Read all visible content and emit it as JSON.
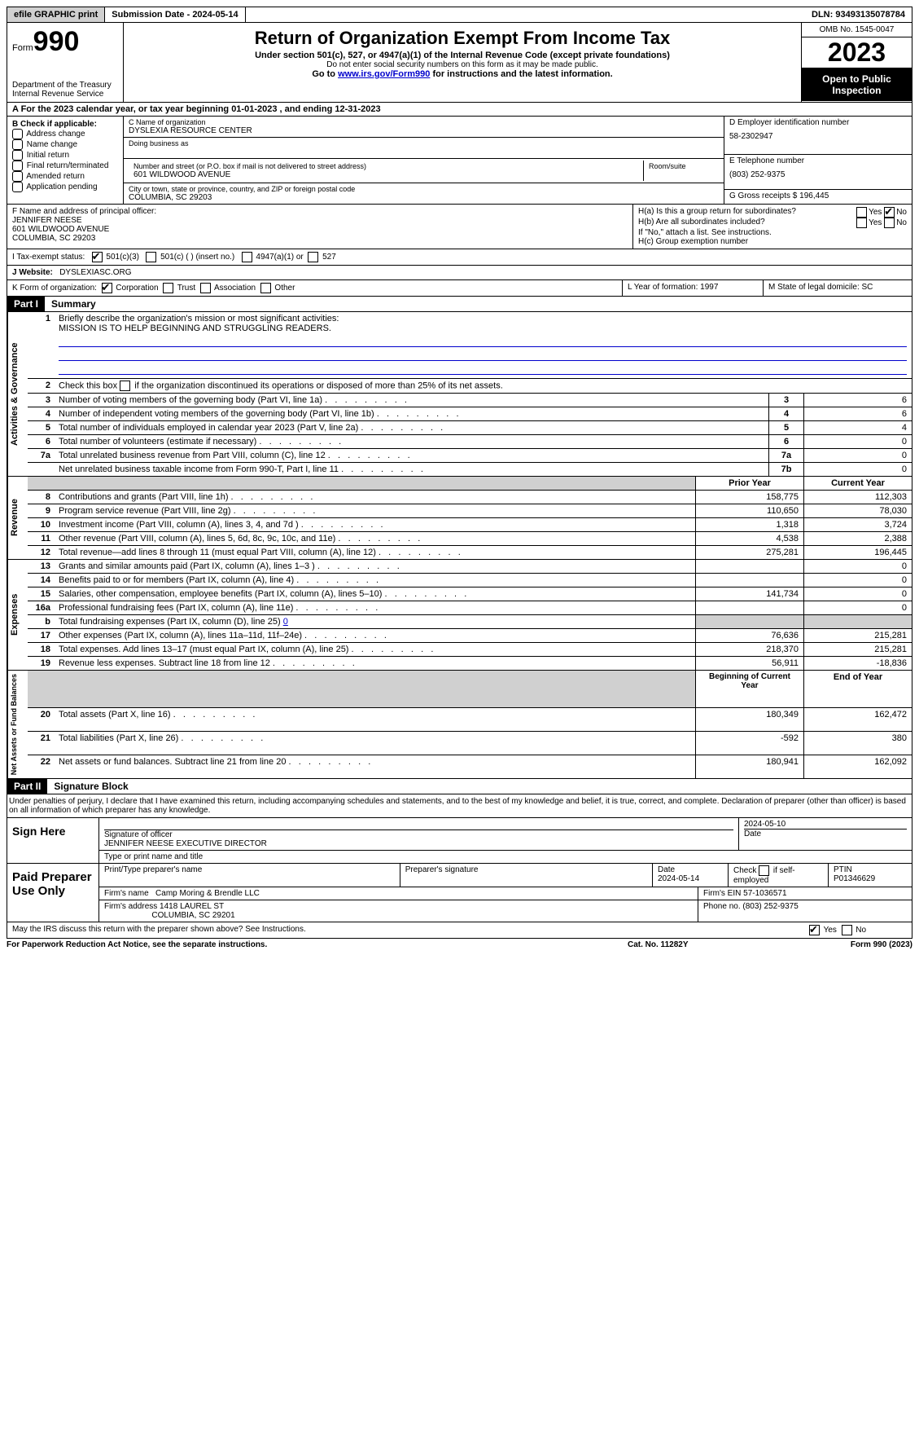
{
  "topbar": {
    "efile_btn": "efile GRAPHIC print",
    "submission": "Submission Date - 2024-05-14",
    "dln": "DLN: 93493135078784"
  },
  "header": {
    "form_word": "Form",
    "form_num": "990",
    "dept": "Department of the Treasury Internal Revenue Service",
    "title": "Return of Organization Exempt From Income Tax",
    "sub": "Under section 501(c), 527, or 4947(a)(1) of the Internal Revenue Code (except private foundations)",
    "ssn_note": "Do not enter social security numbers on this form as it may be made public.",
    "goto_pre": "Go to ",
    "goto_link": "www.irs.gov/Form990",
    "goto_post": " for instructions and the latest information.",
    "omb": "OMB No. 1545-0047",
    "year": "2023",
    "open": "Open to Public Inspection"
  },
  "a_line": "A  For the 2023 calendar year, or tax year beginning 01-01-2023    , and ending 12-31-2023",
  "b": {
    "label": "B Check if applicable:",
    "opts": [
      "Address change",
      "Name change",
      "Initial return",
      "Final return/terminated",
      "Amended return",
      "Application pending"
    ]
  },
  "c": {
    "name_lab": "C Name of organization",
    "name": "DYSLEXIA RESOURCE CENTER",
    "dba_lab": "Doing business as",
    "street_lab": "Number and street (or P.O. box if mail is not delivered to street address)",
    "room_lab": "Room/suite",
    "street": "601 WILDWOOD AVENUE",
    "city_lab": "City or town, state or province, country, and ZIP or foreign postal code",
    "city": "COLUMBIA, SC  29203"
  },
  "d": {
    "lab": "D Employer identification number",
    "val": "58-2302947"
  },
  "e": {
    "lab": "E Telephone number",
    "val": "(803) 252-9375"
  },
  "g": {
    "lab": "G Gross receipts $",
    "val": "196,445"
  },
  "f": {
    "lab": "F  Name and address of principal officer:",
    "name": "JENNIFER NEESE",
    "addr1": "601 WILDWOOD AVENUE",
    "addr2": "COLUMBIA, SC  29203"
  },
  "h": {
    "a_lab": "H(a)  Is this a group return for subordinates?",
    "b_lab": "H(b)  Are all subordinates included?",
    "b_note": "If \"No,\" attach a list. See instructions.",
    "c_lab": "H(c)  Group exemption number",
    "yes": "Yes",
    "no": "No"
  },
  "i": {
    "lab": "I   Tax-exempt status:",
    "o1": "501(c)(3)",
    "o2": "501(c) (  ) (insert no.)",
    "o3": "4947(a)(1) or",
    "o4": "527"
  },
  "j": {
    "lab": "J   Website:",
    "val": "DYSLEXIASC.ORG"
  },
  "k": {
    "lab": "K Form of organization:",
    "o1": "Corporation",
    "o2": "Trust",
    "o3": "Association",
    "o4": "Other"
  },
  "l": {
    "lab": "L Year of formation:",
    "val": "1997"
  },
  "m": {
    "lab": "M State of legal domicile:",
    "val": "SC"
  },
  "part1": {
    "hdr": "Part I",
    "title": "Summary"
  },
  "s1": {
    "vlabel": "Activities & Governance",
    "l1": "Briefly describe the organization's mission or most significant activities:",
    "l1v": "MISSION IS TO HELP BEGINNING AND STRUGGLING READERS.",
    "l2": "Check this box        if the organization discontinued its operations or disposed of more than 25% of its net assets.",
    "l3": "Number of voting members of the governing body (Part VI, line 1a)",
    "l4": "Number of independent voting members of the governing body (Part VI, line 1b)",
    "l5": "Total number of individuals employed in calendar year 2023 (Part V, line 2a)",
    "l6": "Total number of volunteers (estimate if necessary)",
    "l7a": "Total unrelated business revenue from Part VIII, column (C), line 12",
    "l7b": "Net unrelated business taxable income from Form 990-T, Part I, line 11",
    "v3": "6",
    "v4": "6",
    "v5": "4",
    "v6": "0",
    "v7a": "0",
    "v7b": "0"
  },
  "hdr_py": "Prior Year",
  "hdr_cy": "Current Year",
  "s2": {
    "vlabel": "Revenue",
    "rows": [
      {
        "n": "8",
        "t": "Contributions and grants (Part VIII, line 1h)",
        "py": "158,775",
        "cy": "112,303"
      },
      {
        "n": "9",
        "t": "Program service revenue (Part VIII, line 2g)",
        "py": "110,650",
        "cy": "78,030"
      },
      {
        "n": "10",
        "t": "Investment income (Part VIII, column (A), lines 3, 4, and 7d )",
        "py": "1,318",
        "cy": "3,724"
      },
      {
        "n": "11",
        "t": "Other revenue (Part VIII, column (A), lines 5, 6d, 8c, 9c, 10c, and 11e)",
        "py": "4,538",
        "cy": "2,388"
      },
      {
        "n": "12",
        "t": "Total revenue—add lines 8 through 11 (must equal Part VIII, column (A), line 12)",
        "py": "275,281",
        "cy": "196,445"
      }
    ]
  },
  "s3": {
    "vlabel": "Expenses",
    "rows_a": [
      {
        "n": "13",
        "t": "Grants and similar amounts paid (Part IX, column (A), lines 1–3 )",
        "py": "",
        "cy": "0"
      },
      {
        "n": "14",
        "t": "Benefits paid to or for members (Part IX, column (A), line 4)",
        "py": "",
        "cy": "0"
      },
      {
        "n": "15",
        "t": "Salaries, other compensation, employee benefits (Part IX, column (A), lines 5–10)",
        "py": "141,734",
        "cy": "0"
      },
      {
        "n": "16a",
        "t": "Professional fundraising fees (Part IX, column (A), line 11e)",
        "py": "",
        "cy": "0"
      }
    ],
    "l16b_pre": "Total fundraising expenses (Part IX, column (D), line 25) ",
    "l16b_val": "0",
    "rows_b": [
      {
        "n": "17",
        "t": "Other expenses (Part IX, column (A), lines 11a–11d, 11f–24e)",
        "py": "76,636",
        "cy": "215,281"
      },
      {
        "n": "18",
        "t": "Total expenses. Add lines 13–17 (must equal Part IX, column (A), line 25)",
        "py": "218,370",
        "cy": "215,281"
      },
      {
        "n": "19",
        "t": "Revenue less expenses. Subtract line 18 from line 12",
        "py": "56,911",
        "cy": "-18,836"
      }
    ]
  },
  "hdr_bcy": "Beginning of Current Year",
  "hdr_eoy": "End of Year",
  "s4": {
    "vlabel": "Net Assets or Fund Balances",
    "rows": [
      {
        "n": "20",
        "t": "Total assets (Part X, line 16)",
        "py": "180,349",
        "cy": "162,472"
      },
      {
        "n": "21",
        "t": "Total liabilities (Part X, line 26)",
        "py": "-592",
        "cy": "380"
      },
      {
        "n": "22",
        "t": "Net assets or fund balances. Subtract line 21 from line 20",
        "py": "180,941",
        "cy": "162,092"
      }
    ]
  },
  "part2": {
    "hdr": "Part II",
    "title": "Signature Block"
  },
  "perjury": "Under penalties of perjury, I declare that I have examined this return, including accompanying schedules and statements, and to the best of my knowledge and belief, it is true, correct, and complete. Declaration of preparer (other than officer) is based on all information of which preparer has any knowledge.",
  "sign": {
    "label": "Sign Here",
    "sig_lab": "Signature of officer",
    "date_lab": "Date",
    "date": "2024-05-10",
    "name": "JENNIFER NEESE  EXECUTIVE DIRECTOR",
    "name_lab": "Type or print name and title"
  },
  "prep": {
    "label": "Paid Preparer Use Only",
    "name_lab": "Print/Type preparer's name",
    "sig_lab": "Preparer's signature",
    "date_lab": "Date",
    "date": "2024-05-14",
    "self_lab": "Check          if self-employed",
    "ptin_lab": "PTIN",
    "ptin": "P01346629",
    "firm_lab": "Firm's name",
    "firm": "Camp Moring & Brendle LLC",
    "ein_lab": "Firm's EIN",
    "ein": "57-1036571",
    "addr_lab": "Firm's address",
    "addr1": "1418 LAUREL ST",
    "addr2": "COLUMBIA, SC  29201",
    "phone_lab": "Phone no.",
    "phone": "(803) 252-9375"
  },
  "discuss": "May the IRS discuss this return with the preparer shown above? See Instructions.",
  "footer": {
    "pra": "For Paperwork Reduction Act Notice, see the separate instructions.",
    "cat": "Cat. No. 11282Y",
    "form": "Form 990 (2023)"
  }
}
